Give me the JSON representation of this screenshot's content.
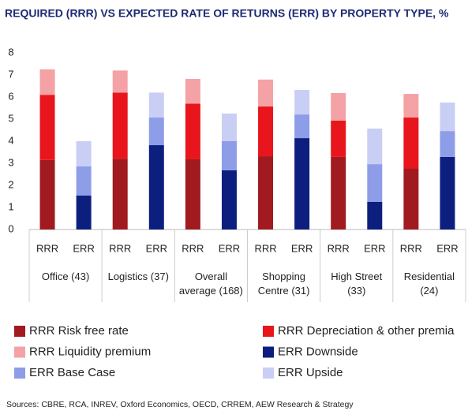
{
  "chart_data": {
    "type": "stacked_bar",
    "title": "REQUIRED (RRR) VS EXPECTED RATE OF RETURNS (ERR) BY PROPERTY TYPE, %",
    "groups": [
      "Office (43)",
      "Logistics (37)",
      "Overall average (168)",
      "Shopping Centre (31)",
      "High Street (33)",
      "Residential (24)"
    ],
    "categories": [
      "RRR",
      "ERR",
      "RRR",
      "ERR",
      "RRR",
      "ERR",
      "RRR",
      "ERR",
      "RRR",
      "ERR",
      "RRR",
      "ERR"
    ],
    "series": [
      {
        "name": "RRR Risk free rate",
        "color": "#a11a1f",
        "values": [
          3.15,
          null,
          3.2,
          null,
          3.18,
          null,
          3.32,
          null,
          3.29,
          null,
          2.75,
          null
        ]
      },
      {
        "name": "RRR Depreciation & other premia",
        "color": "#e8161c",
        "values": [
          2.95,
          null,
          3.0,
          null,
          2.52,
          null,
          2.25,
          null,
          1.64,
          null,
          2.32,
          null
        ]
      },
      {
        "name": "RRR Liquidity premium",
        "color": "#f4a2a5",
        "values": [
          1.15,
          null,
          1.0,
          null,
          1.12,
          null,
          1.22,
          null,
          1.25,
          null,
          1.07,
          null
        ]
      },
      {
        "name": "ERR Downside",
        "color": "#0c1f7e",
        "values": [
          null,
          1.54,
          null,
          3.82,
          null,
          2.68,
          null,
          4.14,
          null,
          1.25,
          null,
          3.29
        ]
      },
      {
        "name": "ERR Base Case",
        "color": "#8e9de8",
        "values": [
          null,
          1.32,
          null,
          1.25,
          null,
          1.32,
          null,
          1.07,
          null,
          1.71,
          null,
          1.17
        ]
      },
      {
        "name": "ERR Upside",
        "color": "#c9cef5",
        "values": [
          null,
          1.14,
          null,
          1.13,
          null,
          1.25,
          null,
          1.11,
          null,
          1.61,
          null,
          1.29
        ]
      }
    ],
    "ylim": [
      0,
      8
    ],
    "yticks": [
      0,
      1,
      2,
      3,
      4,
      5,
      6,
      7,
      8
    ],
    "source": "Sources: CBRE, RCA, INREV, Oxford Economics, OECD, CRREM, AEW Research & Strategy"
  }
}
